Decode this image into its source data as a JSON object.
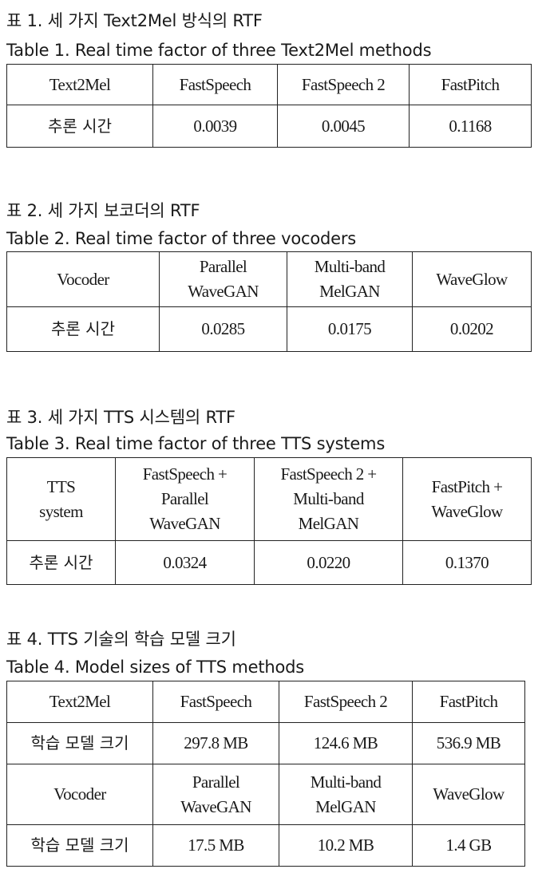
{
  "tables": [
    {
      "caption_ko": "표 1. 세 가지 Text2Mel 방식의 RTF",
      "caption_en": "Table 1. Real time factor of three Text2Mel methods",
      "header": [
        "Text2Mel",
        "FastSpeech",
        "FastSpeech 2",
        "FastPitch"
      ],
      "row": [
        "추론 시간",
        "0.0039",
        "0.0045",
        "0.1168"
      ]
    },
    {
      "caption_ko": "표 2. 세 가지 보코더의 RTF",
      "caption_en": "Table 2. Real time factor of three vocoders",
      "header": [
        "Vocoder",
        [
          "Parallel",
          "WaveGAN"
        ],
        [
          "Multi-band",
          "MelGAN"
        ],
        "WaveGlow"
      ],
      "row": [
        "추론 시간",
        "0.0285",
        "0.0175",
        "0.0202"
      ]
    },
    {
      "caption_ko": "표 3. 세 가지 TTS 시스템의 RTF",
      "caption_en": "Table 3. Real time factor of three TTS systems",
      "header": [
        [
          "TTS",
          "system"
        ],
        [
          "FastSpeech +",
          "Parallel",
          "WaveGAN"
        ],
        [
          "FastSpeech 2 +",
          "Multi-band",
          "MelGAN"
        ],
        [
          "FastPitch +",
          "WaveGlow"
        ]
      ],
      "row": [
        "추론 시간",
        "0.0324",
        "0.0220",
        "0.1370"
      ]
    },
    {
      "caption_ko": "표 4. TTS 기술의 학습 모델 크기",
      "caption_en": "Table 4. Model sizes of TTS methods",
      "header1": [
        "Text2Mel",
        "FastSpeech",
        "FastSpeech 2",
        "FastPitch"
      ],
      "row1": [
        "학습 모델 크기",
        "297.8 MB",
        "124.6 MB",
        "536.9 MB"
      ],
      "header2": [
        "Vocoder",
        [
          "Parallel",
          "WaveGAN"
        ],
        [
          "Multi-band",
          "MelGAN"
        ],
        "WaveGlow"
      ],
      "row2": [
        "학습 모델 크기",
        "17.5 MB",
        "10.2 MB",
        "1.4 GB"
      ]
    }
  ]
}
